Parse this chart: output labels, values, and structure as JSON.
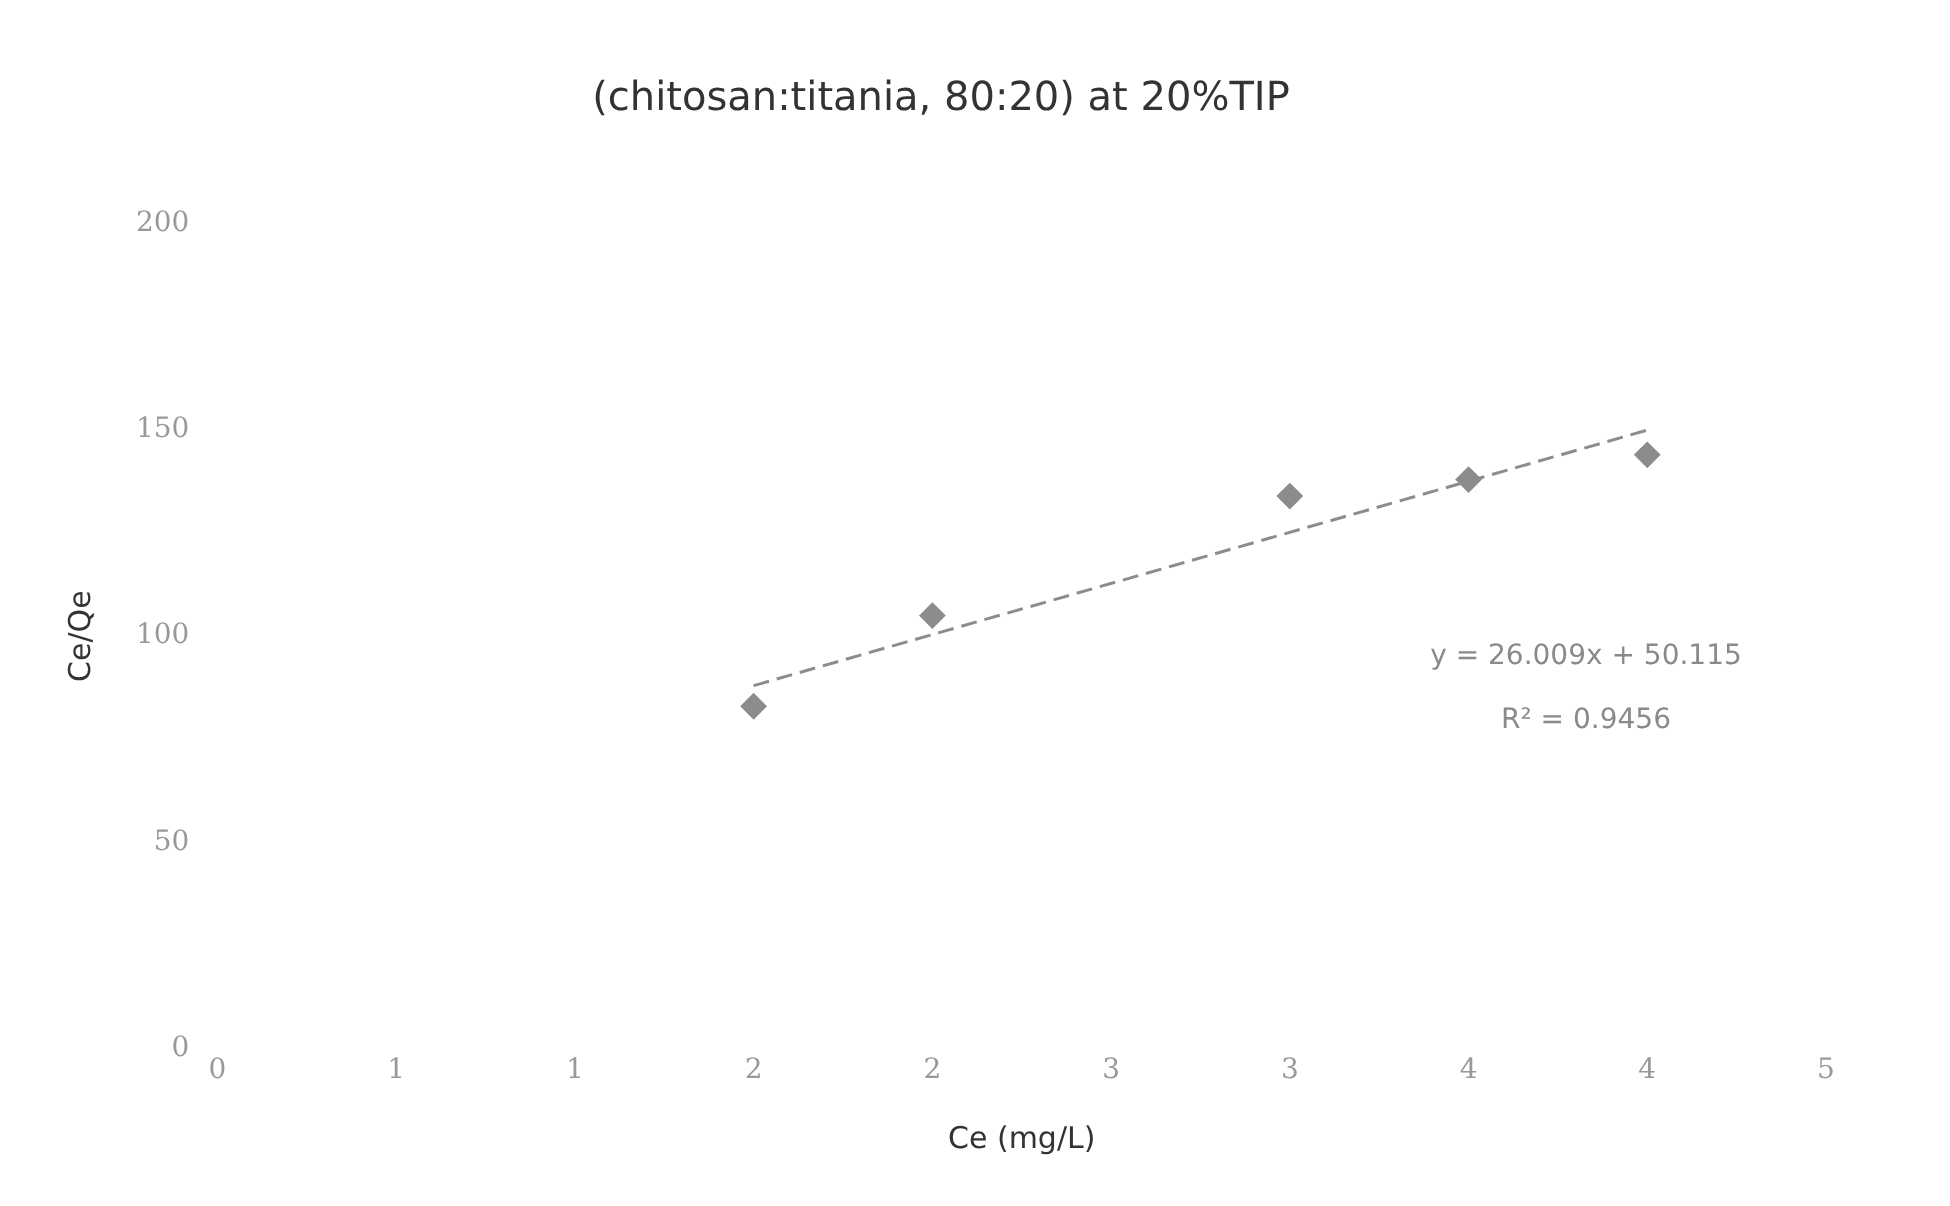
{
  "chart_data": {
    "type": "scatter",
    "title": "(chitosan:titania, 80:20) at 20%TIP",
    "xlabel": "Ce (mg/L)",
    "ylabel": "Ce/Qe",
    "xlim": [
      0,
      4.5
    ],
    "xticks": [
      0,
      {
        "value": 0.5,
        "label": "1"
      },
      1,
      {
        "value": 1.5,
        "label": "2"
      },
      2,
      {
        "value": 2.5,
        "label": "3"
      },
      3,
      {
        "value": 3.5,
        "label": "4"
      },
      4,
      {
        "value": 4.5,
        "label": "5"
      }
    ],
    "ylim": [
      0,
      200
    ],
    "yticks": [
      0,
      50,
      100,
      150,
      200
    ],
    "grid": false,
    "legend": false,
    "marker": "diamond",
    "series": [
      {
        "color": "#8c8c8c",
        "x": [
          1.5,
          2,
          3,
          3.5,
          4
        ],
        "values": [
          83,
          105,
          134,
          138,
          144
        ]
      },
      {
        "type": "line",
        "color": "#8c8c8c",
        "line_style": "dashed",
        "marker": "none",
        "x": [
          1.5,
          4
        ],
        "values": [
          88,
          150
        ]
      }
    ],
    "annotations": [
      "y = 26.009x + 50.115",
      "R² = 0.9456"
    ]
  }
}
